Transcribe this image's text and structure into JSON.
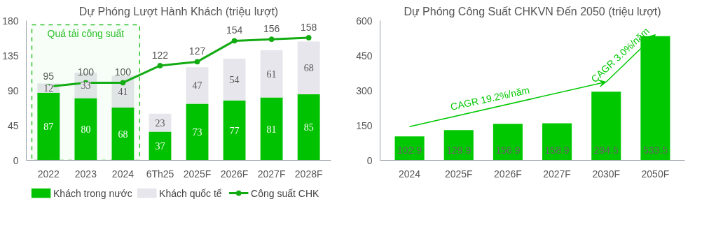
{
  "chart_data": [
    {
      "type": "bar",
      "title": "Dự Phóng Lượt Hành Khách (triệu lượt)",
      "stacked": true,
      "categories": [
        "2022",
        "2023",
        "2024",
        "6Th25",
        "2025F",
        "2026F",
        "2027F",
        "2028F"
      ],
      "series": [
        {
          "name": "Khách trong nước",
          "color": "#00c200",
          "values": [
            87,
            80,
            68,
            37,
            73,
            77,
            81,
            85
          ]
        },
        {
          "name": "Khách quốc tế",
          "color": "#e6e6ec",
          "values": [
            12,
            33,
            41,
            23,
            47,
            54,
            61,
            68
          ]
        },
        {
          "name": "Công suất CHK",
          "type": "line",
          "color": "#12ab12",
          "marker": "circle",
          "line_style": "solid",
          "values": [
            95,
            100,
            100,
            122,
            127,
            154,
            156,
            158
          ]
        }
      ],
      "ylim": [
        0,
        180
      ],
      "yticks": [
        0,
        45,
        90,
        135,
        180
      ],
      "grid": false,
      "data_labels": true,
      "legend": "bottom",
      "bands": [
        {
          "axis": "x",
          "from": "2022",
          "to": "2024",
          "label": "Quá tải công suất",
          "color": "#2fc12f"
        }
      ]
    },
    {
      "type": "bar",
      "title": "Dự Phóng Công Suất CHKVN Đến 2050 (triệu lượt)",
      "categories": [
        "2024",
        "2025F",
        "2026F",
        "2027F",
        "2030F",
        "2050F"
      ],
      "series": [
        {
          "color": "#00c800",
          "values": [
            102.9,
            129.9,
            156.9,
            158.9,
            294.5,
            533.5
          ]
        }
      ],
      "ylim": [
        0,
        600
      ],
      "yticks": [
        0,
        150,
        300,
        450,
        600
      ],
      "grid": false,
      "data_labels": true,
      "annotations": [
        "CAGR 19.2%/năm",
        "CAGR 3.0%/năm"
      ]
    }
  ]
}
